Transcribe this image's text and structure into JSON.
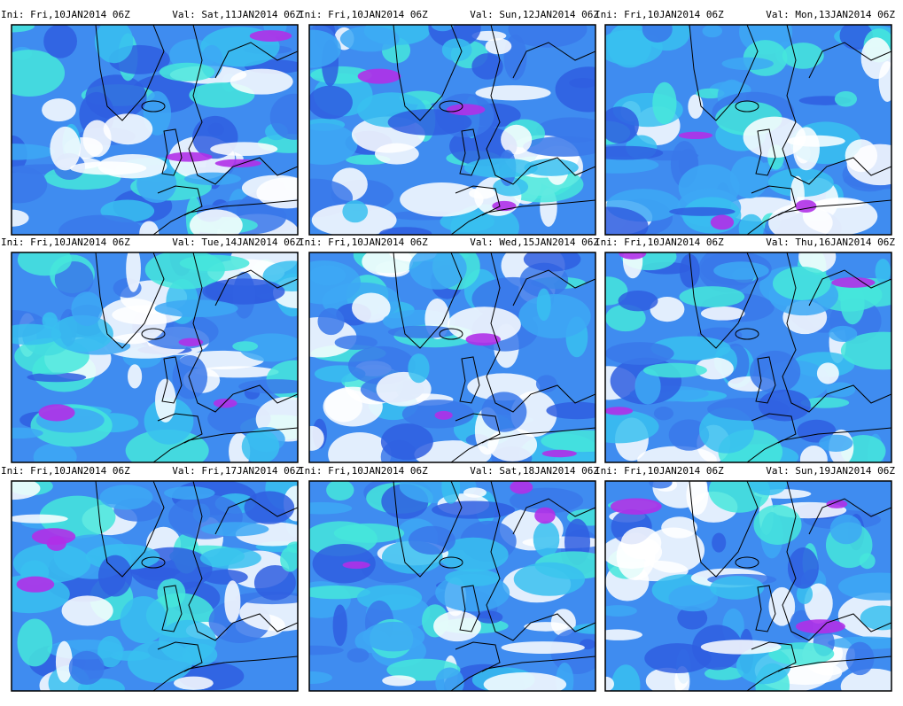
{
  "panels": [
    {
      "ini": "Ini: Fri,10JAN2014 06Z",
      "val": "Val: Sat,11JAN2014 06Z"
    },
    {
      "ini": "Ini: Fri,10JAN2014 06Z",
      "val": "Val: Sun,12JAN2014 06Z"
    },
    {
      "ini": "Ini: Fri,10JAN2014 06Z",
      "val": "Val: Mon,13JAN2014 06Z"
    },
    {
      "ini": "Ini: Fri,10JAN2014 06Z",
      "val": "Val: Tue,14JAN2014 06Z"
    },
    {
      "ini": "Ini: Fri,10JAN2014 06Z",
      "val": "Val: Wed,15JAN2014 06Z"
    },
    {
      "ini": "Ini: Fri,10JAN2014 06Z",
      "val": "Val: Thu,16JAN2014 06Z"
    },
    {
      "ini": "Ini: Fri,10JAN2014 06Z",
      "val": "Val: Fri,17JAN2014 06Z"
    },
    {
      "ini": "Ini: Fri,10JAN2014 06Z",
      "val": "Val: Sat,18JAN2014 06Z"
    },
    {
      "ini": "Ini: Fri,10JAN2014 06Z",
      "val": "Val: Sun,19JAN2014 06Z"
    }
  ]
}
